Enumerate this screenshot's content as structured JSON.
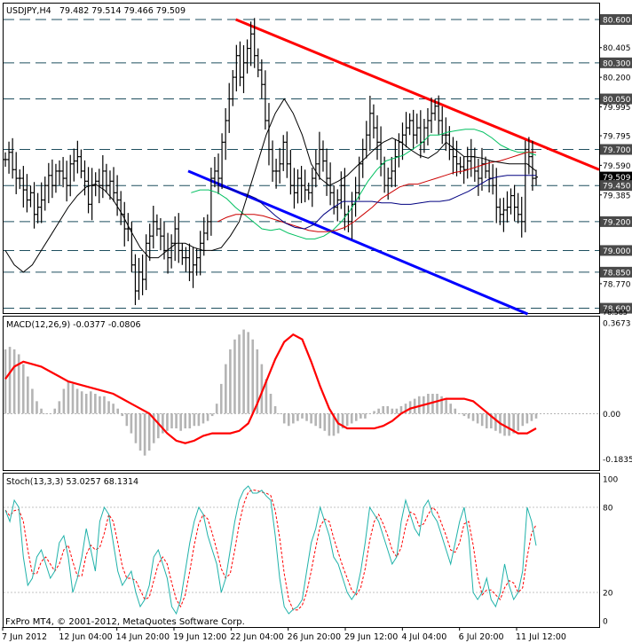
{
  "chart_data": {
    "type": "line",
    "symbol": "USDJPY,H4",
    "ohlc": "79.482 79.514 79.466 79.509",
    "copyright": "FxPro MT4, © 2001-2012, MetaQuotes Software Corp.",
    "x_labels": [
      "7 Jun 2012",
      "12 Jun 04:00",
      "14 Jun 20:00",
      "19 Jun 12:00",
      "22 Jun 04:00",
      "26 Jun 20:00",
      "29 Jun 12:00",
      "4 Jul 04:00",
      "6 Jul 20:00",
      "11 Jul 12:00"
    ],
    "price": {
      "ylim": [
        78.585,
        80.6
      ],
      "ticks": [
        "80.405",
        "80.200",
        "79.995",
        "79.795",
        "79.590",
        "79.385",
        "78.770"
      ],
      "level_labels": [
        {
          "value": 80.6,
          "text": "80.600"
        },
        {
          "value": 80.3,
          "text": "80.300"
        },
        {
          "value": 80.05,
          "text": "80.050"
        },
        {
          "value": 79.7,
          "text": "79.700"
        },
        {
          "value": 79.509,
          "text": "79.509",
          "current": true
        },
        {
          "value": 79.45,
          "text": "79.450"
        },
        {
          "value": 79.2,
          "text": "79.200"
        },
        {
          "value": 79.0,
          "text": "79.000"
        },
        {
          "value": 78.85,
          "text": "78.850"
        },
        {
          "value": 78.6,
          "text": "78.600"
        }
      ],
      "bottom_tick": "78.585",
      "close": [
        79.63,
        79.68,
        79.56,
        79.5,
        79.5,
        79.42,
        79.35,
        79.4,
        79.25,
        79.3,
        79.35,
        79.45,
        79.52,
        79.45,
        79.55,
        79.55,
        79.5,
        79.45,
        79.6,
        79.62,
        79.65,
        79.55,
        79.48,
        79.32,
        79.45,
        79.48,
        79.45,
        79.55,
        79.45,
        79.48,
        79.4,
        79.35,
        79.25,
        79.15,
        79.15,
        78.9,
        78.72,
        78.85,
        78.8,
        79.05,
        79.1,
        79.2,
        79.15,
        79.1,
        79.0,
        78.95,
        79.05,
        79.15,
        79.0,
        78.95,
        78.95,
        78.85,
        78.9,
        78.95,
        79.05,
        79.12,
        79.2,
        79.5,
        79.55,
        79.5,
        79.75,
        79.9,
        80.05,
        80.2,
        80.35,
        80.2,
        80.3,
        80.4,
        80.5,
        80.35,
        80.25,
        80.15,
        79.9,
        79.7,
        79.55,
        79.55,
        79.6,
        79.75,
        79.6,
        79.45,
        79.4,
        79.5,
        79.45,
        79.42,
        79.4,
        79.5,
        79.6,
        79.7,
        79.62,
        79.5,
        79.4,
        79.3,
        79.35,
        79.45,
        79.25,
        79.2,
        79.32,
        79.4,
        79.6,
        79.7,
        79.8,
        79.95,
        79.85,
        79.75,
        79.6,
        79.45,
        79.5,
        79.55,
        79.65,
        79.75,
        79.8,
        79.85,
        79.9,
        79.8,
        79.85,
        79.75,
        79.85,
        79.9,
        79.95,
        80.0,
        79.9,
        79.8,
        79.8,
        79.7,
        79.65,
        79.6,
        79.58,
        79.56,
        79.62,
        79.65,
        79.55,
        79.5,
        79.6,
        79.55,
        79.5,
        79.45,
        79.3,
        79.25,
        79.28,
        79.3,
        79.38,
        79.3,
        79.25,
        79.2,
        79.7,
        79.65,
        79.5,
        79.509
      ],
      "ma_black": [
        79.0,
        78.9,
        78.85,
        78.9,
        79.0,
        79.1,
        79.2,
        79.3,
        79.38,
        79.44,
        79.46,
        79.42,
        79.35,
        79.25,
        79.13,
        79.02,
        78.95,
        78.95,
        79.0,
        79.05,
        79.05,
        79.02,
        79.0,
        79.0,
        79.02,
        79.1,
        79.2,
        79.4,
        79.6,
        79.8,
        79.95,
        80.05,
        79.95,
        79.8,
        79.6,
        79.5,
        79.45,
        79.48,
        79.52,
        79.58,
        79.64,
        79.7,
        79.75,
        79.78,
        79.75,
        79.7,
        79.66,
        79.64,
        79.68,
        79.75,
        79.7,
        79.65,
        79.65,
        79.64,
        79.62,
        79.61,
        79.6,
        79.6,
        79.6,
        79.55
      ],
      "ma_green": [
        79.4,
        79.42,
        79.42,
        79.4,
        79.36,
        79.3,
        79.25,
        79.2,
        79.15,
        79.14,
        79.15,
        79.12,
        79.1,
        79.08,
        79.08,
        79.1,
        79.14,
        79.2,
        79.28,
        79.38,
        79.48,
        79.56,
        79.62,
        79.64,
        79.66,
        79.7,
        79.74,
        79.8,
        79.8,
        79.82,
        79.83,
        79.84,
        79.84,
        79.82,
        79.78,
        79.73,
        79.7,
        79.68,
        79.68,
        79.66
      ],
      "ma_red": [
        79.2,
        79.23,
        79.25,
        79.25,
        79.25,
        79.24,
        79.22,
        79.2,
        79.18,
        79.16,
        79.14,
        79.13,
        79.13,
        79.14,
        79.16,
        79.2,
        79.25,
        79.3,
        79.36,
        79.4,
        79.44,
        79.46,
        79.46,
        79.48,
        79.5,
        79.52,
        79.54,
        79.55,
        79.57,
        79.59,
        79.61,
        79.62,
        79.64,
        79.66,
        79.68,
        79.68
      ],
      "ma_navy": [
        79.45,
        79.43,
        79.41,
        79.39,
        79.36,
        79.3,
        79.24,
        79.19,
        79.16,
        79.15,
        79.18,
        79.25,
        79.3,
        79.34,
        79.34,
        79.34,
        79.34,
        79.33,
        79.33,
        79.32,
        79.32,
        79.33,
        79.34,
        79.34,
        79.35,
        79.38,
        79.41,
        79.45,
        79.49,
        79.51,
        79.52,
        79.52,
        79.52,
        79.52
      ],
      "resistance_line": {
        "x_frac": [
          0.39,
          1.0
        ],
        "y": [
          80.6,
          79.56
        ]
      },
      "support_line": {
        "x_frac": [
          0.31,
          0.88
        ],
        "y": [
          79.55,
          78.56
        ]
      }
    },
    "macd": {
      "label": "MACD(12,26,9) -0.0377 -0.0806",
      "ylim": [
        -0.2,
        0.3673
      ],
      "ticks": [
        "0.3673",
        "0.00",
        "-0.1835"
      ],
      "histogram": [
        0.26,
        0.27,
        0.26,
        0.24,
        0.2,
        0.15,
        0.1,
        0.05,
        0.02,
        0.0,
        0.0,
        0.02,
        0.05,
        0.1,
        0.13,
        0.12,
        0.1,
        0.09,
        0.08,
        0.09,
        0.08,
        0.07,
        0.07,
        0.05,
        0.04,
        0.02,
        -0.01,
        -0.05,
        -0.08,
        -0.12,
        -0.15,
        -0.17,
        -0.15,
        -0.12,
        -0.1,
        -0.08,
        -0.07,
        -0.06,
        -0.06,
        -0.07,
        -0.06,
        -0.06,
        -0.05,
        -0.05,
        -0.04,
        -0.03,
        -0.01,
        0.04,
        0.12,
        0.2,
        0.26,
        0.3,
        0.32,
        0.34,
        0.33,
        0.3,
        0.26,
        0.2,
        0.14,
        0.08,
        0.03,
        0.0,
        -0.04,
        -0.05,
        -0.04,
        -0.03,
        -0.02,
        -0.03,
        -0.04,
        -0.05,
        -0.06,
        -0.07,
        -0.09,
        -0.09,
        -0.08,
        -0.06,
        -0.05,
        -0.04,
        -0.03,
        -0.02,
        -0.02,
        0.0,
        0.01,
        0.02,
        0.03,
        0.03,
        0.02,
        0.02,
        0.03,
        0.04,
        0.05,
        0.06,
        0.07,
        0.07,
        0.08,
        0.08,
        0.08,
        0.07,
        0.06,
        0.04,
        0.02,
        0.0,
        -0.01,
        -0.02,
        -0.03,
        -0.04,
        -0.05,
        -0.06,
        -0.06,
        -0.07,
        -0.08,
        -0.09,
        -0.09,
        -0.08,
        -0.07,
        -0.05,
        -0.04,
        -0.03,
        -0.02
      ],
      "signal": [
        0.14,
        0.19,
        0.21,
        0.2,
        0.19,
        0.17,
        0.15,
        0.13,
        0.12,
        0.11,
        0.1,
        0.09,
        0.08,
        0.06,
        0.04,
        0.02,
        0.0,
        -0.04,
        -0.08,
        -0.11,
        -0.12,
        -0.11,
        -0.09,
        -0.08,
        -0.08,
        -0.08,
        -0.07,
        -0.04,
        0.04,
        0.13,
        0.22,
        0.29,
        0.32,
        0.3,
        0.21,
        0.11,
        0.02,
        -0.04,
        -0.06,
        -0.06,
        -0.06,
        -0.06,
        -0.05,
        -0.03,
        0.0,
        0.02,
        0.03,
        0.04,
        0.05,
        0.06,
        0.06,
        0.06,
        0.05,
        0.02,
        -0.01,
        -0.04,
        -0.06,
        -0.08,
        -0.08,
        -0.06
      ]
    },
    "stochastic": {
      "label": "Stoch(13,3,3) 53.0257 68.1314",
      "ylim": [
        0,
        100
      ],
      "ticks": [
        "100",
        "80",
        "20",
        "0"
      ],
      "main": [
        78,
        70,
        85,
        80,
        45,
        25,
        30,
        45,
        50,
        40,
        30,
        35,
        55,
        60,
        45,
        20,
        30,
        45,
        65,
        50,
        35,
        70,
        80,
        75,
        55,
        35,
        25,
        30,
        35,
        20,
        10,
        15,
        25,
        45,
        50,
        40,
        30,
        10,
        5,
        15,
        35,
        55,
        70,
        80,
        75,
        60,
        50,
        40,
        20,
        30,
        50,
        70,
        85,
        92,
        95,
        90,
        90,
        92,
        88,
        85,
        60,
        30,
        10,
        5,
        8,
        10,
        15,
        35,
        55,
        65,
        80,
        70,
        60,
        45,
        40,
        30,
        20,
        15,
        20,
        35,
        55,
        80,
        75,
        70,
        60,
        50,
        40,
        45,
        70,
        85,
        75,
        65,
        60,
        80,
        85,
        75,
        70,
        60,
        50,
        40,
        55,
        70,
        80,
        60,
        20,
        15,
        20,
        30,
        15,
        10,
        20,
        40,
        25,
        15,
        20,
        35,
        80,
        70,
        53
      ]
    },
    "colors": {
      "resistance": "#ff0000",
      "support": "#0000ff",
      "ma_black": "#000000",
      "ma_green": "#00c060",
      "ma_red": "#cc0000",
      "ma_navy": "#000080",
      "macd_hist": "#b4b4b4",
      "macd_signal": "#ff0000",
      "stoch_main": "#20b2aa",
      "stoch_signal": "#ff0000",
      "label_box": "#4a4a4a",
      "current_box": "#000000"
    }
  }
}
